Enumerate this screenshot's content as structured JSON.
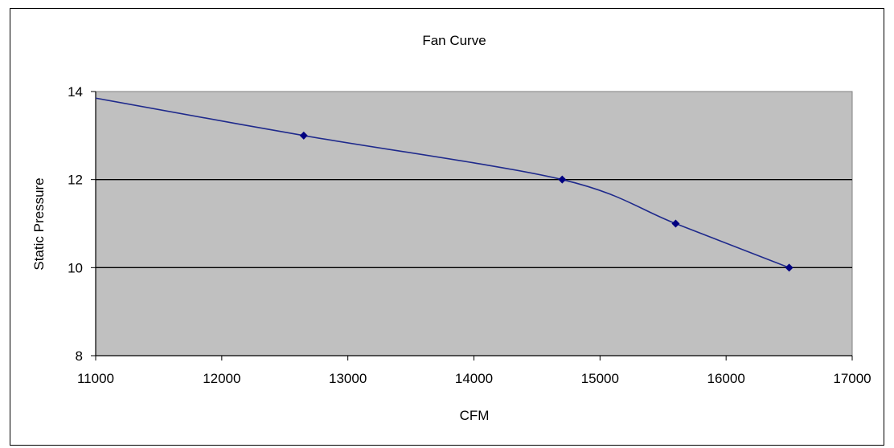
{
  "chart_data": {
    "type": "line",
    "title": "Fan Curve",
    "xlabel": "CFM",
    "ylabel": "Static Pressure",
    "xlim": [
      11000,
      17000
    ],
    "ylim": [
      8,
      14
    ],
    "xticks": [
      11000,
      12000,
      13000,
      14000,
      15000,
      16000,
      17000
    ],
    "yticks": [
      8,
      10,
      12,
      14
    ],
    "grid": "horizontal",
    "legend": "none",
    "series": [
      {
        "x": [
          11000,
          12650,
          14700,
          15600,
          16500
        ],
        "y": [
          13.85,
          13.0,
          12.0,
          11.0,
          10.0
        ]
      }
    ],
    "colors": {
      "plot_background": "#c0c0c0",
      "line": "#1f2a8c",
      "marker": "#000080",
      "gridline": "#000000"
    }
  }
}
